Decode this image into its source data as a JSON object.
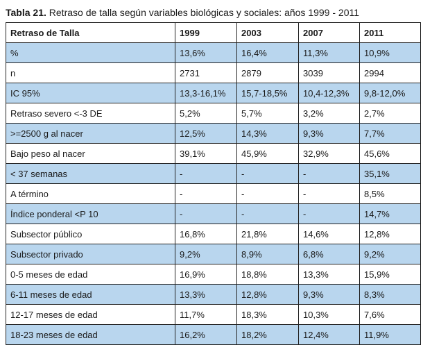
{
  "caption": {
    "label": "Tabla 21.",
    "text": "Retraso de talla según variables biológicas y sociales: años 1999 - 2011"
  },
  "table": {
    "headers": [
      "Retraso de Talla",
      "1999",
      "2003",
      "2007",
      "2011"
    ],
    "rows": [
      [
        "%",
        "13,6%",
        "16,4%",
        "11,3%",
        "10,9%"
      ],
      [
        "n",
        "2731",
        "2879",
        "3039",
        "2994"
      ],
      [
        "IC 95%",
        "13,3-16,1%",
        "15,7-18,5%",
        "10,4-12,3%",
        "9,8-12,0%"
      ],
      [
        "Retraso severo <-3 DE",
        "5,2%",
        "5,7%",
        "3,2%",
        "2,7%"
      ],
      [
        ">=2500 g al nacer",
        "12,5%",
        "14,3%",
        "9,3%",
        "7,7%"
      ],
      [
        "Bajo peso al nacer",
        "39,1%",
        "45,9%",
        "32,9%",
        "45,6%"
      ],
      [
        "< 37 semanas",
        "-",
        "-",
        "-",
        "35,1%"
      ],
      [
        "A término",
        "-",
        "-",
        "-",
        "8,5%"
      ],
      [
        "Índice ponderal <P 10",
        "-",
        "-",
        "-",
        "14,7%"
      ],
      [
        "Subsector público",
        "16,8%",
        "21,8%",
        "14,6%",
        "12,8%"
      ],
      [
        "Subsector privado",
        "9,2%",
        "8,9%",
        "6,8%",
        "9,2%"
      ],
      [
        "0-5 meses de edad",
        "16,9%",
        "18,8%",
        "13,3%",
        "15,9%"
      ],
      [
        "6-11 meses de edad",
        "13,3%",
        "12,8%",
        "9,3%",
        "8,3%"
      ],
      [
        "12-17 meses de edad",
        "11,7%",
        "18,3%",
        "10,3%",
        "7,6%"
      ],
      [
        "18-23 meses de edad",
        "16,2%",
        "18,2%",
        "12,4%",
        "11,9%"
      ]
    ]
  },
  "colors": {
    "shaded_row": "#b9d6ee",
    "plain_row": "#ffffff",
    "border": "#222222"
  }
}
